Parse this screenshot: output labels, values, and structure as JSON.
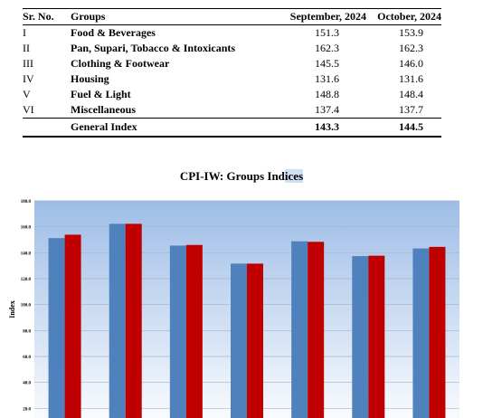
{
  "table": {
    "headers": [
      "Sr. No.",
      "Groups",
      "September, 2024",
      "October, 2024"
    ],
    "rows": [
      {
        "sr": "I",
        "group": "Food & Beverages",
        "sep": "151.3",
        "oct": "153.9"
      },
      {
        "sr": "II",
        "group": "Pan, Supari, Tobacco & Intoxicants",
        "sep": "162.3",
        "oct": "162.3"
      },
      {
        "sr": "III",
        "group": "Clothing & Footwear",
        "sep": "145.5",
        "oct": "146.0"
      },
      {
        "sr": "IV",
        "group": "Housing",
        "sep": "131.6",
        "oct": "131.6"
      },
      {
        "sr": "V",
        "group": "Fuel & Light",
        "sep": "148.8",
        "oct": "148.4"
      },
      {
        "sr": "VI",
        "group": "Miscellaneous",
        "sep": "137.4",
        "oct": "137.7"
      }
    ],
    "total": {
      "sr": "",
      "group": "General Index",
      "sep": "143.3",
      "oct": "144.5"
    }
  },
  "chart_title_main": "CPI-IW: Groups Ind",
  "chart_title_highlight": "ices",
  "chart_data": {
    "type": "bar",
    "title": "CPI-IW: Groups Indices",
    "xlabel": "",
    "ylabel": "Index",
    "categories": [
      "Food & Beverages",
      "Pan, Supari, Tobacco & Intoxicants",
      "Clothing & Footwear",
      "Housing",
      "Fuel & Light",
      "Miscellaneous",
      "General Index"
    ],
    "series": [
      {
        "values": [
          151.3,
          162.3,
          145.5,
          131.6,
          148.8,
          137.4,
          143.3
        ]
      },
      {
        "values": [
          153.9,
          162.3,
          146.0,
          131.6,
          148.4,
          137.7,
          144.5
        ]
      }
    ],
    "ylim": [
      0,
      180
    ],
    "yticks": [
      "20.0",
      "40.0",
      "60.0",
      "80.0",
      "100.0",
      "120.0",
      "140.0",
      "160.0",
      "180.0"
    ],
    "ytick_values": [
      20,
      40,
      60,
      80,
      100,
      120,
      140,
      160,
      180
    ],
    "grid": true,
    "colors": {
      "series1": "#4f81bd",
      "series2": "#c00000",
      "plot_top": "#9ebde7",
      "plot_bottom": "#ffffff",
      "grid": "#a6b4c8"
    }
  }
}
